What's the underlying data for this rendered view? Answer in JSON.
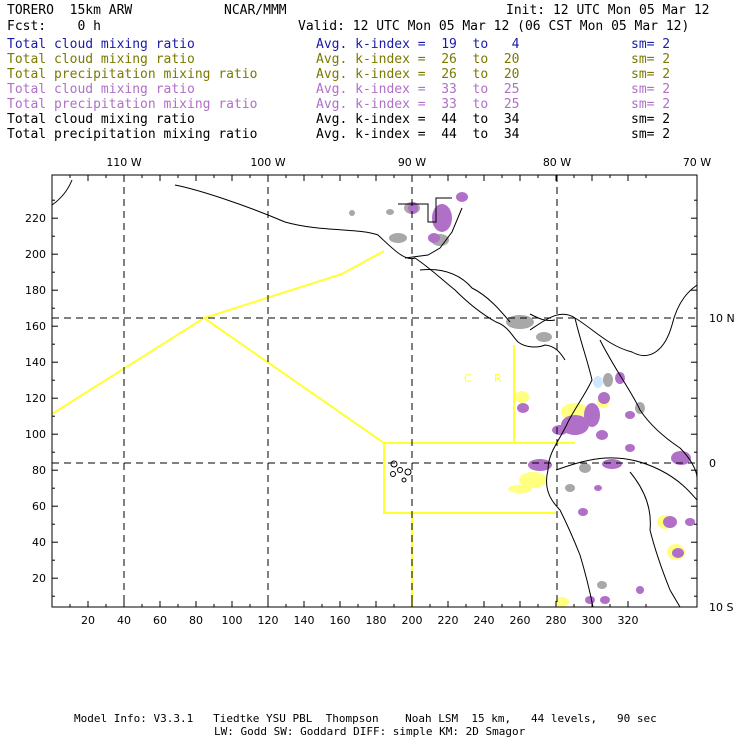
{
  "header": {
    "model": "TORERO  15km ARW",
    "org": "NCAR/MMM",
    "init": "Init: 12 UTC Mon 05 Mar 12",
    "fcst": "Fcst:    0 h",
    "valid": "Valid: 12 UTC Mon 05 Mar 12 (06 CST Mon 05 Mar 12)"
  },
  "legend_rows": [
    {
      "name": "Total cloud mixing ratio",
      "k": "Avg. k-index =  19  to   4",
      "sm": "sm= 2",
      "color": "#1a1aa8"
    },
    {
      "name": "Total cloud mixing ratio",
      "k": "Avg. k-index =  26  to  20",
      "sm": "sm= 2",
      "color": "#7a7a00"
    },
    {
      "name": "Total precipitation mixing ratio",
      "k": "Avg. k-index =  26  to  20",
      "sm": "sm= 2",
      "color": "#7a7a00"
    },
    {
      "name": "Total cloud mixing ratio",
      "k": "Avg. k-index =  33  to  25",
      "sm": "sm= 2",
      "color": "#b070c8"
    },
    {
      "name": "Total precipitation mixing ratio",
      "k": "Avg. k-index =  33  to  25",
      "sm": "sm= 2",
      "color": "#b070c8"
    },
    {
      "name": "Total cloud mixing ratio",
      "k": "Avg. k-index =  44  to  34",
      "sm": "sm= 2",
      "color": "#000000"
    },
    {
      "name": "Total precipitation mixing ratio",
      "k": "Avg. k-index =  44  to  34",
      "sm": "sm= 2",
      "color": "#000000"
    }
  ],
  "map": {
    "lon_labels": [
      "110 W",
      "100 W",
      "90 W",
      "80 W",
      "70 W"
    ],
    "lat_labels": [
      "10 N",
      "0",
      "10 S"
    ],
    "x_ticks": [
      "20",
      "40",
      "60",
      "80",
      "100",
      "120",
      "140",
      "160",
      "180",
      "200",
      "220",
      "240",
      "260",
      "280",
      "300",
      "320"
    ],
    "y_ticks": [
      "220",
      "200",
      "180",
      "160",
      "140",
      "120",
      "100",
      "80",
      "60",
      "40",
      "20"
    ],
    "inline_labels": [
      "C",
      "R"
    ],
    "colors": {
      "box_border": "#000000",
      "grid_dashed": "#000000",
      "coastline": "#000000",
      "boundary_line": "#ffff33",
      "cloud_gray": "#a8a8a8",
      "cloud_yellow": "#ffff80",
      "cloud_purple": "#b070c8",
      "cloud_lightblue": "#cfe8ff"
    }
  },
  "footer": {
    "line1": "Model Info: V3.3.1   Tiedtke YSU PBL  Thompson    Noah LSM  15 km,   44 levels,   90 sec",
    "line2": "LW: Godd SW: Goddard DIFF: simple KM: 2D Smagor"
  }
}
